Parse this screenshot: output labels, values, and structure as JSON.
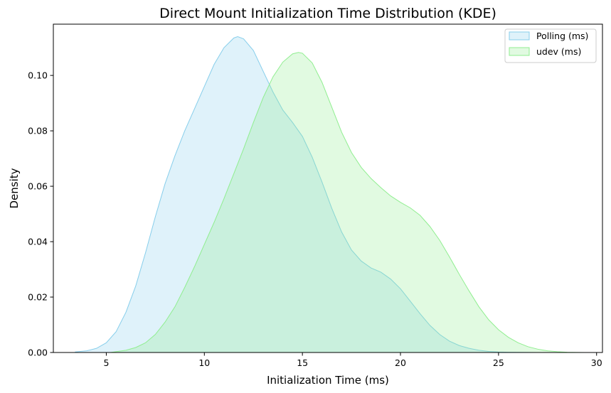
{
  "chart_data": {
    "type": "area",
    "title": "Direct Mount Initialization Time Distribution (KDE)",
    "xlabel": "Initialization Time (ms)",
    "ylabel": "Density",
    "xlim": [
      2.3,
      30.3
    ],
    "ylim": [
      0,
      0.1185
    ],
    "xticks": [
      5,
      10,
      15,
      20,
      25,
      30
    ],
    "yticks": [
      0.0,
      0.02,
      0.04,
      0.06,
      0.08,
      0.1
    ],
    "ytick_labels": [
      "0.00",
      "0.02",
      "0.04",
      "0.06",
      "0.08",
      "0.10"
    ],
    "grid": false,
    "legend_position": "top-right",
    "series": [
      {
        "name": "Polling (ms)",
        "color": "#87CEEB",
        "x": [
          3.4,
          4.0,
          4.5,
          5.0,
          5.5,
          6.0,
          6.5,
          7.0,
          7.5,
          8.0,
          8.5,
          9.0,
          9.5,
          10.0,
          10.5,
          11.0,
          11.5,
          11.7,
          12.0,
          12.5,
          13.0,
          13.5,
          14.0,
          14.5,
          15.0,
          15.5,
          16.0,
          16.5,
          17.0,
          17.5,
          18.0,
          18.5,
          19.0,
          19.5,
          20.0,
          20.5,
          21.0,
          21.5,
          22.0,
          22.5,
          23.0,
          23.5,
          24.0,
          24.5,
          25.0,
          25.5,
          26.0,
          26.5,
          27.0
        ],
        "y": [
          0.0002,
          0.0006,
          0.0015,
          0.0035,
          0.0075,
          0.0145,
          0.024,
          0.036,
          0.049,
          0.061,
          0.071,
          0.08,
          0.088,
          0.096,
          0.104,
          0.11,
          0.1135,
          0.114,
          0.1132,
          0.109,
          0.1015,
          0.094,
          0.0875,
          0.083,
          0.078,
          0.0705,
          0.0615,
          0.052,
          0.0435,
          0.037,
          0.033,
          0.0305,
          0.029,
          0.0265,
          0.023,
          0.0185,
          0.014,
          0.0098,
          0.0065,
          0.0041,
          0.0025,
          0.0015,
          0.0008,
          0.0004,
          0.0002,
          0.0001,
          5e-05,
          2e-05,
          0.0
        ]
      },
      {
        "name": "udev (ms)",
        "color": "#90EE90",
        "x": [
          5.2,
          6.0,
          6.5,
          7.0,
          7.5,
          8.0,
          8.5,
          9.0,
          9.5,
          10.0,
          10.5,
          11.0,
          11.5,
          12.0,
          12.5,
          13.0,
          13.5,
          14.0,
          14.5,
          14.8,
          15.0,
          15.5,
          16.0,
          16.5,
          17.0,
          17.5,
          18.0,
          18.5,
          19.0,
          19.5,
          20.0,
          20.5,
          21.0,
          21.5,
          22.0,
          22.5,
          23.0,
          23.5,
          24.0,
          24.5,
          25.0,
          25.5,
          26.0,
          26.5,
          27.0,
          27.5,
          28.0,
          28.5,
          29.0,
          29.4
        ],
        "y": [
          0.0,
          0.0008,
          0.0018,
          0.0035,
          0.0065,
          0.011,
          0.0165,
          0.0235,
          0.031,
          0.039,
          0.047,
          0.0555,
          0.0645,
          0.0735,
          0.083,
          0.092,
          0.0995,
          0.1048,
          0.1078,
          0.1083,
          0.108,
          0.1045,
          0.0975,
          0.0885,
          0.0795,
          0.0722,
          0.0668,
          0.0628,
          0.0595,
          0.0565,
          0.0542,
          0.0522,
          0.0495,
          0.0455,
          0.0405,
          0.0345,
          0.0282,
          0.0222,
          0.0165,
          0.0118,
          0.0082,
          0.0055,
          0.0035,
          0.0021,
          0.0012,
          0.0006,
          0.0003,
          0.0001,
          3e-05,
          0.0
        ]
      }
    ]
  }
}
